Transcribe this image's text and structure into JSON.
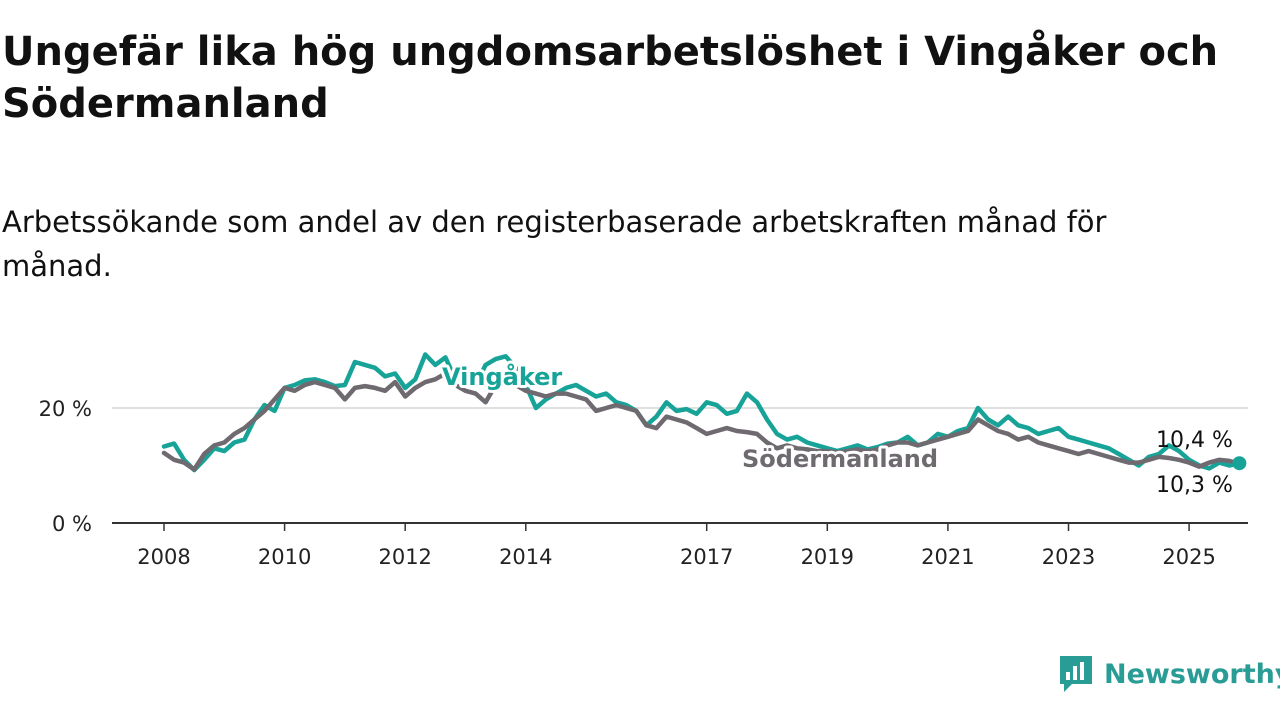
{
  "title": "Ungefär lika hög ungdomsarbetslöshet i Vingåker och Södermanland",
  "subtitle": "Arbetssökande som andel av den registerbaserade arbetskraften månad för månad.",
  "logo": {
    "text": "Newsworthy",
    "icon": "newsworthy-chart-bubble-icon",
    "color": "#2a9c96"
  },
  "chart_data": {
    "type": "line",
    "title": "Ungefär lika hög ungdomsarbetslöshet i Vingåker och Södermanland",
    "subtitle": "Arbetssökande som andel av den registerbaserade arbetskraften månad för månad.",
    "xlabel": "",
    "ylabel": "",
    "x_ticks": [
      "2008",
      "2010",
      "2012",
      "2014",
      "2017",
      "2019",
      "2021",
      "2023",
      "2025"
    ],
    "y_ticks": [
      0,
      20
    ],
    "y_tick_labels": [
      "0 %",
      "20 %"
    ],
    "ylim": [
      0,
      30
    ],
    "grid": "horizontal at 20 %",
    "legend": "inline labels on lines",
    "series": [
      {
        "name": "Vingåker",
        "color": "#17a398",
        "end_label": "10,4 %",
        "points": [
          [
            "2008-01",
            13.3
          ],
          [
            "2008-03",
            13.8
          ],
          [
            "2008-05",
            11.0
          ],
          [
            "2008-07",
            9.2
          ],
          [
            "2008-09",
            11.0
          ],
          [
            "2008-11",
            13.0
          ],
          [
            "2009-01",
            12.5
          ],
          [
            "2009-03",
            14.0
          ],
          [
            "2009-05",
            14.5
          ],
          [
            "2009-07",
            18.0
          ],
          [
            "2009-09",
            20.5
          ],
          [
            "2009-11",
            19.5
          ],
          [
            "2010-01",
            23.5
          ],
          [
            "2010-03",
            24.0
          ],
          [
            "2010-05",
            24.8
          ],
          [
            "2010-07",
            25.0
          ],
          [
            "2010-09",
            24.5
          ],
          [
            "2010-11",
            23.8
          ],
          [
            "2011-01",
            24.0
          ],
          [
            "2011-03",
            28.0
          ],
          [
            "2011-05",
            27.5
          ],
          [
            "2011-07",
            27.0
          ],
          [
            "2011-09",
            25.5
          ],
          [
            "2011-11",
            26.0
          ],
          [
            "2012-01",
            23.5
          ],
          [
            "2012-03",
            25.0
          ],
          [
            "2012-05",
            29.3
          ],
          [
            "2012-07",
            27.5
          ],
          [
            "2012-09",
            28.8
          ],
          [
            "2012-11",
            25.0
          ],
          [
            "2013-01",
            25.5
          ],
          [
            "2013-03",
            24.0
          ],
          [
            "2013-05",
            27.5
          ],
          [
            "2013-07",
            28.5
          ],
          [
            "2013-09",
            29.0
          ],
          [
            "2013-11",
            27.0
          ],
          [
            "2014-01",
            24.0
          ],
          [
            "2014-03",
            20.0
          ],
          [
            "2014-05",
            21.5
          ],
          [
            "2014-07",
            22.5
          ],
          [
            "2014-09",
            23.5
          ],
          [
            "2014-11",
            24.0
          ],
          [
            "2015-01",
            23.0
          ],
          [
            "2015-03",
            22.0
          ],
          [
            "2015-05",
            22.5
          ],
          [
            "2015-07",
            21.0
          ],
          [
            "2015-09",
            20.5
          ],
          [
            "2015-11",
            19.5
          ],
          [
            "2016-01",
            17.0
          ],
          [
            "2016-03",
            18.5
          ],
          [
            "2016-05",
            21.0
          ],
          [
            "2016-07",
            19.5
          ],
          [
            "2016-09",
            19.8
          ],
          [
            "2016-11",
            19.0
          ],
          [
            "2017-01",
            21.0
          ],
          [
            "2017-03",
            20.5
          ],
          [
            "2017-05",
            19.0
          ],
          [
            "2017-07",
            19.5
          ],
          [
            "2017-09",
            22.5
          ],
          [
            "2017-11",
            21.0
          ],
          [
            "2018-01",
            18.0
          ],
          [
            "2018-03",
            15.5
          ],
          [
            "2018-05",
            14.5
          ],
          [
            "2018-07",
            15.0
          ],
          [
            "2018-09",
            14.0
          ],
          [
            "2018-11",
            13.5
          ],
          [
            "2019-01",
            13.0
          ],
          [
            "2019-03",
            12.5
          ],
          [
            "2019-05",
            13.0
          ],
          [
            "2019-07",
            13.5
          ],
          [
            "2019-09",
            12.8
          ],
          [
            "2019-11",
            13.2
          ],
          [
            "2020-01",
            13.8
          ],
          [
            "2020-03",
            14.0
          ],
          [
            "2020-05",
            15.0
          ],
          [
            "2020-07",
            13.5
          ],
          [
            "2020-09",
            14.0
          ],
          [
            "2020-11",
            15.5
          ],
          [
            "2021-01",
            15.0
          ],
          [
            "2021-03",
            16.0
          ],
          [
            "2021-05",
            16.5
          ],
          [
            "2021-07",
            20.0
          ],
          [
            "2021-09",
            18.0
          ],
          [
            "2021-11",
            17.0
          ],
          [
            "2022-01",
            18.5
          ],
          [
            "2022-03",
            17.0
          ],
          [
            "2022-05",
            16.5
          ],
          [
            "2022-07",
            15.5
          ],
          [
            "2022-09",
            16.0
          ],
          [
            "2022-11",
            16.5
          ],
          [
            "2023-01",
            15.0
          ],
          [
            "2023-03",
            14.5
          ],
          [
            "2023-05",
            14.0
          ],
          [
            "2023-07",
            13.5
          ],
          [
            "2023-09",
            13.0
          ],
          [
            "2023-11",
            12.0
          ],
          [
            "2024-01",
            11.0
          ],
          [
            "2024-03",
            10.0
          ],
          [
            "2024-05",
            11.5
          ],
          [
            "2024-07",
            12.0
          ],
          [
            "2024-09",
            13.5
          ],
          [
            "2024-11",
            12.5
          ],
          [
            "2025-01",
            11.0
          ],
          [
            "2025-03",
            10.0
          ],
          [
            "2025-05",
            9.5
          ],
          [
            "2025-07",
            10.5
          ],
          [
            "2025-09",
            10.0
          ],
          [
            "2025-11",
            10.4
          ]
        ]
      },
      {
        "name": "Södermanland",
        "color": "#6e6a70",
        "end_label": "10,3 %",
        "points": [
          [
            "2008-01",
            12.2
          ],
          [
            "2008-03",
            11.0
          ],
          [
            "2008-05",
            10.5
          ],
          [
            "2008-07",
            9.3
          ],
          [
            "2008-09",
            12.0
          ],
          [
            "2008-11",
            13.5
          ],
          [
            "2009-01",
            14.0
          ],
          [
            "2009-03",
            15.5
          ],
          [
            "2009-05",
            16.5
          ],
          [
            "2009-07",
            18.0
          ],
          [
            "2009-09",
            19.5
          ],
          [
            "2009-11",
            21.5
          ],
          [
            "2010-01",
            23.5
          ],
          [
            "2010-03",
            23.0
          ],
          [
            "2010-05",
            24.0
          ],
          [
            "2010-07",
            24.5
          ],
          [
            "2010-09",
            24.0
          ],
          [
            "2010-11",
            23.5
          ],
          [
            "2011-01",
            21.5
          ],
          [
            "2011-03",
            23.5
          ],
          [
            "2011-05",
            23.8
          ],
          [
            "2011-07",
            23.5
          ],
          [
            "2011-09",
            23.0
          ],
          [
            "2011-11",
            24.5
          ],
          [
            "2012-01",
            22.0
          ],
          [
            "2012-03",
            23.5
          ],
          [
            "2012-05",
            24.5
          ],
          [
            "2012-07",
            25.0
          ],
          [
            "2012-09",
            26.0
          ],
          [
            "2012-11",
            24.0
          ],
          [
            "2013-01",
            23.0
          ],
          [
            "2013-03",
            22.5
          ],
          [
            "2013-05",
            21.0
          ],
          [
            "2013-07",
            24.0
          ],
          [
            "2013-09",
            24.5
          ],
          [
            "2013-11",
            24.0
          ],
          [
            "2014-01",
            23.0
          ],
          [
            "2014-03",
            22.5
          ],
          [
            "2014-05",
            22.0
          ],
          [
            "2014-07",
            22.5
          ],
          [
            "2014-09",
            22.5
          ],
          [
            "2014-11",
            22.0
          ],
          [
            "2015-01",
            21.5
          ],
          [
            "2015-03",
            19.5
          ],
          [
            "2015-05",
            20.0
          ],
          [
            "2015-07",
            20.5
          ],
          [
            "2015-09",
            20.0
          ],
          [
            "2015-11",
            19.5
          ],
          [
            "2016-01",
            17.0
          ],
          [
            "2016-03",
            16.5
          ],
          [
            "2016-05",
            18.5
          ],
          [
            "2016-07",
            18.0
          ],
          [
            "2016-09",
            17.5
          ],
          [
            "2016-11",
            16.5
          ],
          [
            "2017-01",
            15.5
          ],
          [
            "2017-03",
            16.0
          ],
          [
            "2017-05",
            16.5
          ],
          [
            "2017-07",
            16.0
          ],
          [
            "2017-09",
            15.8
          ],
          [
            "2017-11",
            15.5
          ],
          [
            "2018-01",
            14.0
          ],
          [
            "2018-03",
            13.0
          ],
          [
            "2018-05",
            13.5
          ],
          [
            "2018-07",
            13.0
          ],
          [
            "2018-09",
            12.8
          ],
          [
            "2018-11",
            12.5
          ],
          [
            "2019-01",
            12.5
          ],
          [
            "2019-03",
            12.3
          ],
          [
            "2019-05",
            12.5
          ],
          [
            "2019-07",
            12.8
          ],
          [
            "2019-09",
            12.5
          ],
          [
            "2019-11",
            12.8
          ],
          [
            "2020-01",
            13.5
          ],
          [
            "2020-03",
            14.0
          ],
          [
            "2020-05",
            14.0
          ],
          [
            "2020-07",
            13.5
          ],
          [
            "2020-09",
            14.0
          ],
          [
            "2020-11",
            14.5
          ],
          [
            "2021-01",
            15.0
          ],
          [
            "2021-03",
            15.5
          ],
          [
            "2021-05",
            16.0
          ],
          [
            "2021-07",
            18.0
          ],
          [
            "2021-09",
            17.0
          ],
          [
            "2021-11",
            16.0
          ],
          [
            "2022-01",
            15.5
          ],
          [
            "2022-03",
            14.5
          ],
          [
            "2022-05",
            15.0
          ],
          [
            "2022-07",
            14.0
          ],
          [
            "2022-09",
            13.5
          ],
          [
            "2022-11",
            13.0
          ],
          [
            "2023-01",
            12.5
          ],
          [
            "2023-03",
            12.0
          ],
          [
            "2023-05",
            12.5
          ],
          [
            "2023-07",
            12.0
          ],
          [
            "2023-09",
            11.5
          ],
          [
            "2023-11",
            11.0
          ],
          [
            "2024-01",
            10.5
          ],
          [
            "2024-03",
            10.5
          ],
          [
            "2024-05",
            11.0
          ],
          [
            "2024-07",
            11.5
          ],
          [
            "2024-09",
            11.3
          ],
          [
            "2024-11",
            11.0
          ],
          [
            "2025-01",
            10.5
          ],
          [
            "2025-03",
            9.8
          ],
          [
            "2025-05",
            10.5
          ],
          [
            "2025-07",
            11.0
          ],
          [
            "2025-09",
            10.8
          ],
          [
            "2025-11",
            10.3
          ]
        ]
      }
    ]
  }
}
